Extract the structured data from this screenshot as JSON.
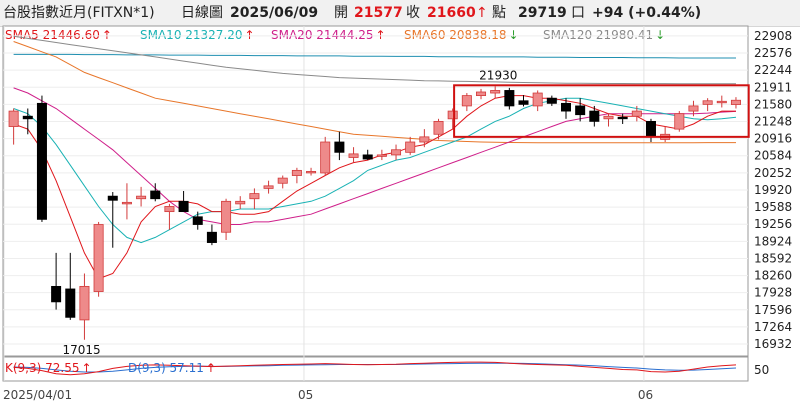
{
  "header": {
    "instrument": "台股指數近月(FITXN*1)",
    "period": "日線圖",
    "date": "2025/06/09",
    "open_label": "開",
    "open_value": "21577",
    "close_label": "收",
    "close_value": "21660",
    "unit_label": "點",
    "volume": "29719",
    "volume_unit": "口",
    "change": "+94 (+0.44%)"
  },
  "legend": [
    {
      "label": "SMA5 21446.60",
      "dir": "↑",
      "color": "#e0161b",
      "arrow_color": "#e0161b"
    },
    {
      "label": "SMA10 21327.20",
      "dir": "↑",
      "color": "#19b2b4",
      "arrow_color": "#e0161b"
    },
    {
      "label": "SMA20 21444.25",
      "dir": "↑",
      "color": "#cf1f8a",
      "arrow_color": "#e0161b"
    },
    {
      "label": "SMA60 20838.18",
      "dir": "↓",
      "color": "#e8762a",
      "arrow_color": "#2a9d2a"
    },
    {
      "label": "SMA120 21980.41",
      "dir": "↓",
      "color": "#8a8a8a",
      "arrow_color": "#2a9d2a"
    }
  ],
  "colors": {
    "up_fill": "#ee8a8a",
    "up_stroke": "#d23a3a",
    "down": "#000000",
    "sma5": "#e0161b",
    "sma10": "#19b2b4",
    "sma20": "#cf1f8a",
    "sma60": "#e8762a",
    "sma120": "#8a8a8a",
    "top_line": "#1f8fb0",
    "highlight_box": "#d01010",
    "k_line": "#e0161b",
    "d_line": "#2a6fd0"
  },
  "chart_data": {
    "type": "candlestick",
    "ylim": [
      16700,
      23100
    ],
    "y_ticks": [
      "22908",
      "22576",
      "22244",
      "21911",
      "21580",
      "21248",
      "20916",
      "20584",
      "20252",
      "19920",
      "19588",
      "19256",
      "18924",
      "18592",
      "18260",
      "17928",
      "17596",
      "17264",
      "16932"
    ],
    "x_ticks": [
      "2025/04/01",
      "05",
      "06"
    ],
    "annotations": [
      "21930",
      "17015"
    ],
    "candles": [
      {
        "o": 21150,
        "h": 21500,
        "l": 20800,
        "c": 21450
      },
      {
        "o": 21350,
        "h": 21500,
        "l": 21000,
        "c": 21300
      },
      {
        "o": 21600,
        "h": 21750,
        "l": 19300,
        "c": 19350
      },
      {
        "o": 18050,
        "h": 18700,
        "l": 17600,
        "c": 17750
      },
      {
        "o": 18000,
        "h": 18700,
        "l": 17400,
        "c": 17450
      },
      {
        "o": 17400,
        "h": 18300,
        "l": 17015,
        "c": 18050
      },
      {
        "o": 17950,
        "h": 19300,
        "l": 17850,
        "c": 19250
      },
      {
        "o": 19800,
        "h": 19880,
        "l": 18800,
        "c": 19720
      },
      {
        "o": 19650,
        "h": 20050,
        "l": 19350,
        "c": 19680
      },
      {
        "o": 19750,
        "h": 19980,
        "l": 19600,
        "c": 19800
      },
      {
        "o": 19900,
        "h": 20050,
        "l": 19700,
        "c": 19750
      },
      {
        "o": 19500,
        "h": 19650,
        "l": 19150,
        "c": 19600
      },
      {
        "o": 19700,
        "h": 19900,
        "l": 19500,
        "c": 19500
      },
      {
        "o": 19400,
        "h": 19500,
        "l": 19150,
        "c": 19250
      },
      {
        "o": 19100,
        "h": 19250,
        "l": 18850,
        "c": 18900
      },
      {
        "o": 19100,
        "h": 19750,
        "l": 18950,
        "c": 19700
      },
      {
        "o": 19650,
        "h": 19800,
        "l": 19550,
        "c": 19700
      },
      {
        "o": 19750,
        "h": 19950,
        "l": 19550,
        "c": 19850
      },
      {
        "o": 19950,
        "h": 20100,
        "l": 19850,
        "c": 20000
      },
      {
        "o": 20050,
        "h": 20200,
        "l": 19950,
        "c": 20150
      },
      {
        "o": 20200,
        "h": 20350,
        "l": 20050,
        "c": 20300
      },
      {
        "o": 20270,
        "h": 20350,
        "l": 20200,
        "c": 20280
      },
      {
        "o": 20250,
        "h": 20950,
        "l": 20200,
        "c": 20850
      },
      {
        "o": 20850,
        "h": 21050,
        "l": 20500,
        "c": 20650
      },
      {
        "o": 20550,
        "h": 20750,
        "l": 20450,
        "c": 20620
      },
      {
        "o": 20600,
        "h": 20700,
        "l": 20500,
        "c": 20520
      },
      {
        "o": 20580,
        "h": 20700,
        "l": 20500,
        "c": 20600
      },
      {
        "o": 20600,
        "h": 20800,
        "l": 20500,
        "c": 20700
      },
      {
        "o": 20650,
        "h": 20950,
        "l": 20600,
        "c": 20850
      },
      {
        "o": 20850,
        "h": 21100,
        "l": 20750,
        "c": 20950
      },
      {
        "o": 21000,
        "h": 21300,
        "l": 20900,
        "c": 21250
      },
      {
        "o": 21300,
        "h": 21500,
        "l": 21100,
        "c": 21450
      },
      {
        "o": 21550,
        "h": 21800,
        "l": 21450,
        "c": 21750
      },
      {
        "o": 21750,
        "h": 21880,
        "l": 21680,
        "c": 21820
      },
      {
        "o": 21800,
        "h": 21930,
        "l": 21700,
        "c": 21850
      },
      {
        "o": 21850,
        "h": 21900,
        "l": 21480,
        "c": 21550
      },
      {
        "o": 21650,
        "h": 21760,
        "l": 21540,
        "c": 21580
      },
      {
        "o": 21550,
        "h": 21850,
        "l": 21450,
        "c": 21800
      },
      {
        "o": 21700,
        "h": 21750,
        "l": 21550,
        "c": 21600
      },
      {
        "o": 21600,
        "h": 21700,
        "l": 21300,
        "c": 21450
      },
      {
        "o": 21550,
        "h": 21700,
        "l": 21250,
        "c": 21380
      },
      {
        "o": 21450,
        "h": 21550,
        "l": 21150,
        "c": 21250
      },
      {
        "o": 21300,
        "h": 21400,
        "l": 21150,
        "c": 21350
      },
      {
        "o": 21330,
        "h": 21400,
        "l": 21200,
        "c": 21310
      },
      {
        "o": 21350,
        "h": 21550,
        "l": 21250,
        "c": 21450
      },
      {
        "o": 21250,
        "h": 21300,
        "l": 20850,
        "c": 20950
      },
      {
        "o": 20900,
        "h": 21150,
        "l": 20850,
        "c": 21000
      },
      {
        "o": 21100,
        "h": 21450,
        "l": 21050,
        "c": 21400
      },
      {
        "o": 21450,
        "h": 21650,
        "l": 21350,
        "c": 21550
      },
      {
        "o": 21580,
        "h": 21700,
        "l": 21450,
        "c": 21650
      },
      {
        "o": 21620,
        "h": 21750,
        "l": 21520,
        "c": 21640
      },
      {
        "o": 21577,
        "h": 21720,
        "l": 21500,
        "c": 21660
      }
    ],
    "sma5": [
      21200,
      21100,
      20700,
      20100,
      19400,
      18700,
      18200,
      18300,
      18700,
      19300,
      19600,
      19700,
      19700,
      19650,
      19500,
      19500,
      19450,
      19450,
      19500,
      19700,
      19900,
      20050,
      20200,
      20350,
      20450,
      20500,
      20600,
      20650,
      20750,
      20800,
      20950,
      21100,
      21350,
      21550,
      21700,
      21750,
      21750,
      21700,
      21700,
      21650,
      21600,
      21500,
      21400,
      21350,
      21350,
      21200,
      21150,
      21100,
      21200,
      21350,
      21450,
      21450
    ],
    "sma10": [
      21500,
      21400,
      21150,
      20800,
      20400,
      20000,
      19600,
      19250,
      19000,
      18900,
      19000,
      19150,
      19300,
      19450,
      19500,
      19500,
      19550,
      19550,
      19550,
      19600,
      19650,
      19700,
      19800,
      19950,
      20100,
      20300,
      20400,
      20500,
      20550,
      20650,
      20750,
      20850,
      20950,
      21100,
      21250,
      21350,
      21500,
      21600,
      21650,
      21700,
      21700,
      21650,
      21600,
      21550,
      21500,
      21450,
      21400,
      21350,
      21300,
      21280,
      21300,
      21330
    ],
    "sma20": [
      21900,
      21800,
      21650,
      21500,
      21300,
      21100,
      20900,
      20700,
      20450,
      20200,
      19950,
      19700,
      19500,
      19350,
      19300,
      19250,
      19250,
      19300,
      19300,
      19350,
      19400,
      19450,
      19550,
      19650,
      19750,
      19850,
      19950,
      20050,
      20150,
      20250,
      20350,
      20450,
      20550,
      20650,
      20750,
      20850,
      20950,
      21050,
      21150,
      21250,
      21300,
      21350,
      21400,
      21400,
      21400,
      21400,
      21400,
      21400,
      21400,
      21410,
      21430,
      21444
    ],
    "sma60": [
      22800,
      22700,
      22600,
      22500,
      22350,
      22200,
      22100,
      22000,
      21900,
      21800,
      21700,
      21650,
      21600,
      21550,
      21500,
      21450,
      21400,
      21350,
      21300,
      21250,
      21200,
      21150,
      21100,
      21050,
      21000,
      20980,
      20960,
      20940,
      20920,
      20900,
      20880,
      20870,
      20860,
      20850,
      20845,
      20840,
      20838,
      20835,
      20835,
      20835,
      20835,
      20835,
      20835,
      20835,
      20835,
      20836,
      20836,
      20837,
      20837,
      20838,
      20838,
      20838
    ],
    "sma120": [
      22900,
      22860,
      22820,
      22780,
      22740,
      22700,
      22660,
      22620,
      22580,
      22540,
      22500,
      22460,
      22420,
      22380,
      22340,
      22300,
      22270,
      22240,
      22210,
      22180,
      22160,
      22140,
      22120,
      22100,
      22090,
      22080,
      22070,
      22060,
      22050,
      22040,
      22035,
      22030,
      22025,
      22020,
      22015,
      22010,
      22005,
      22000,
      21995,
      21990,
      21988,
      21986,
      21985,
      21984,
      21983,
      21982,
      21982,
      21981,
      21981,
      21981,
      21980,
      21980
    ],
    "top_line": [
      22550,
      22550,
      22550,
      22550,
      22550,
      22545,
      22545,
      22545,
      22540,
      22540,
      22540,
      22535,
      22535,
      22535,
      22530,
      22530,
      22530,
      22525,
      22525,
      22525,
      22520,
      22520,
      22520,
      22520,
      22515,
      22515,
      22515,
      22510,
      22510,
      22510,
      22505,
      22505,
      22505,
      22500,
      22500,
      22500,
      22500,
      22495,
      22495,
      22495,
      22490,
      22490,
      22490,
      22490,
      22485,
      22485,
      22485,
      22480,
      22480,
      22480,
      22480,
      22480
    ],
    "highlight_range": {
      "i0": 32,
      "i1": 51,
      "y0": 20950,
      "y1": 21950
    },
    "kd": {
      "k_label": "K(9,3) 72.55",
      "k_dir": "↑",
      "d_label": "D(9,3) 57.11",
      "d_dir": "↑",
      "level": "50",
      "ylim": [
        0,
        100
      ],
      "k": [
        60,
        55,
        45,
        30,
        25,
        30,
        40,
        55,
        65,
        70,
        72,
        70,
        68,
        66,
        64,
        66,
        68,
        70,
        72,
        74,
        75,
        76,
        78,
        76,
        74,
        73,
        74,
        75,
        78,
        80,
        82,
        84,
        85,
        85,
        84,
        80,
        76,
        74,
        72,
        70,
        65,
        60,
        55,
        50,
        48,
        40,
        38,
        42,
        52,
        62,
        68,
        72
      ],
      "d": [
        62,
        60,
        55,
        48,
        42,
        38,
        38,
        42,
        48,
        55,
        60,
        63,
        65,
        66,
        65,
        65,
        66,
        67,
        68,
        70,
        71,
        72,
        73,
        74,
        74,
        74,
        74,
        74,
        75,
        76,
        77,
        78,
        79,
        80,
        80,
        80,
        79,
        77,
        75,
        73,
        71,
        68,
        64,
        60,
        57,
        52,
        48,
        46,
        47,
        50,
        54,
        57
      ]
    }
  }
}
